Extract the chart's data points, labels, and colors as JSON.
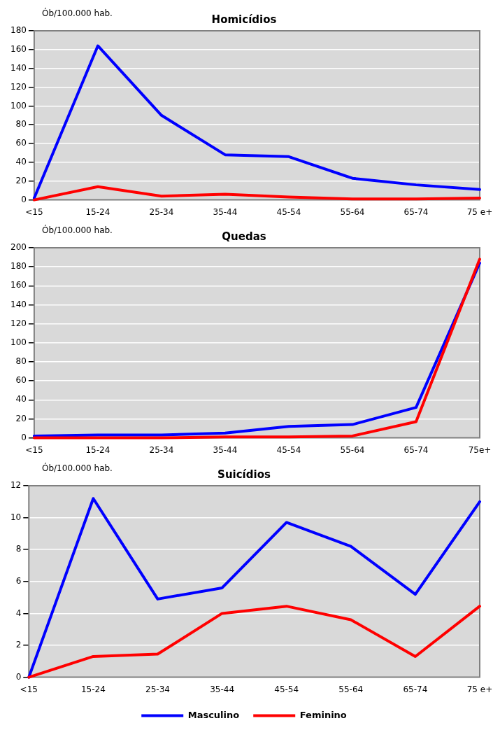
{
  "chart_data": [
    {
      "type": "line",
      "title": "Homicídios",
      "ylabel": "Ób/100.000 hab.",
      "categories": [
        "<15",
        "15-24",
        "25-34",
        "35-44",
        "45-54",
        "55-64",
        "65-74",
        "75 e+"
      ],
      "series": [
        {
          "color": "#0000ff",
          "values": [
            2,
            164,
            90,
            48,
            46,
            23,
            16,
            11
          ]
        },
        {
          "color": "#ff0000",
          "values": [
            0,
            14,
            4,
            6,
            3,
            1,
            1,
            2
          ]
        }
      ],
      "ylim": [
        0,
        180
      ],
      "yticks": [
        0,
        20,
        40,
        60,
        80,
        100,
        120,
        140,
        160,
        180
      ],
      "grid": "y",
      "legend": false,
      "marker": "none",
      "line_style": "solid"
    },
    {
      "type": "line",
      "title": "Quedas",
      "ylabel": "Ób/100.000 hab.",
      "categories": [
        "<15",
        "15-24",
        "25-34",
        "35-44",
        "45-54",
        "55-64",
        "65-74",
        "75e+"
      ],
      "series": [
        {
          "color": "#0000ff",
          "values": [
            2,
            3,
            3,
            5,
            12,
            14,
            32,
            184
          ]
        },
        {
          "color": "#ff0000",
          "values": [
            0,
            0,
            0,
            1,
            1,
            2,
            17,
            188
          ]
        }
      ],
      "ylim": [
        0,
        200
      ],
      "yticks": [
        0,
        20,
        40,
        60,
        80,
        100,
        120,
        140,
        160,
        180,
        200
      ],
      "grid": "y",
      "legend": false,
      "marker": "none",
      "line_style": "solid"
    },
    {
      "type": "line",
      "title": "Suicídios",
      "ylabel": "Ób/100.000 hab.",
      "categories": [
        "<15",
        "15-24",
        "25-34",
        "35-44",
        "45-54",
        "55-64",
        "65-74",
        "75 e+"
      ],
      "series": [
        {
          "name": "Masculino",
          "color": "#0000ff",
          "values": [
            0,
            11.2,
            4.9,
            5.6,
            9.7,
            8.2,
            5.2,
            11.0
          ]
        },
        {
          "name": "Feminino",
          "color": "#ff0000",
          "values": [
            0,
            1.3,
            1.45,
            4.0,
            4.45,
            3.6,
            1.3,
            4.45
          ]
        }
      ],
      "ylim": [
        0,
        12
      ],
      "yticks": [
        0,
        2,
        4,
        6,
        8,
        10,
        12
      ],
      "grid": "y",
      "legend": "bottom",
      "marker": "none",
      "line_style": "solid"
    }
  ]
}
